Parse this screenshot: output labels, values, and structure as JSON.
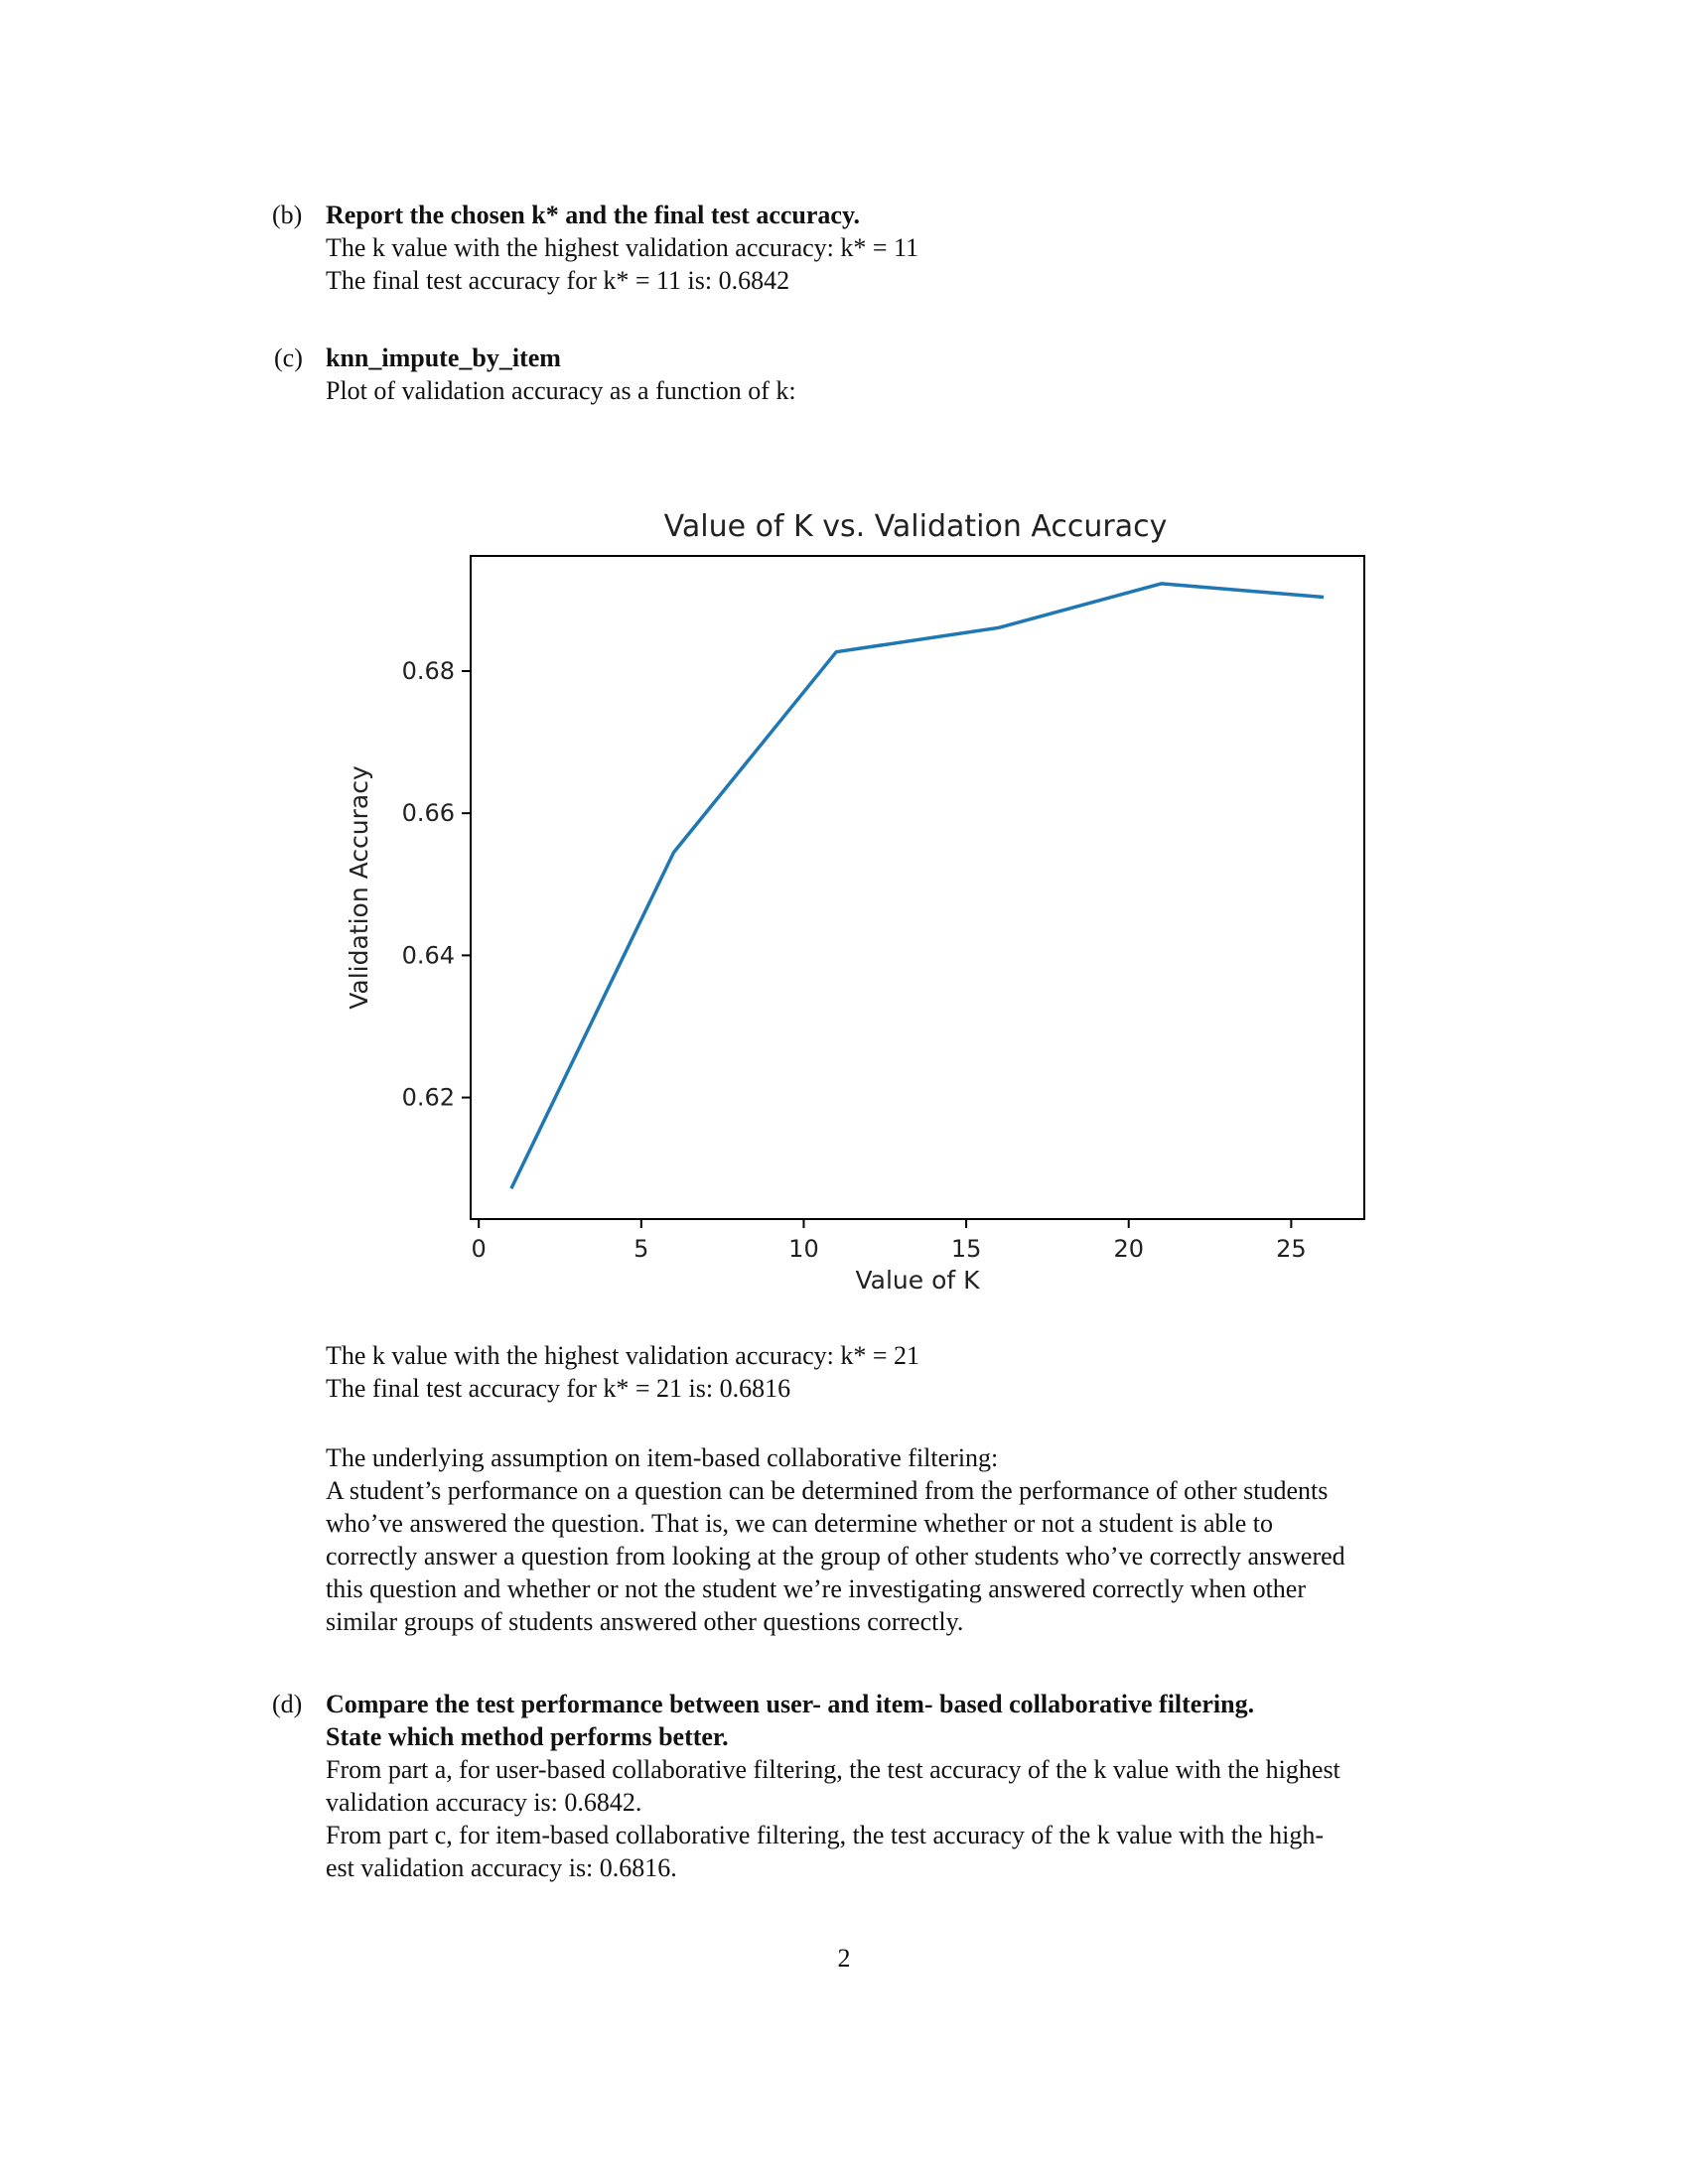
{
  "part_b": {
    "marker": "(b)",
    "heading": "Report the chosen k* and the final test accuracy.",
    "line1": "The k value with the highest validation accuracy: k* = 11",
    "line2": "The final test accuracy for k* = 11 is: 0.6842"
  },
  "part_c": {
    "marker": "(c)",
    "heading": "knn_impute_by_item",
    "intro": "Plot of validation accuracy as a function of k:",
    "result1": "The k value with the highest validation accuracy: k* = 21",
    "result2": "The final test accuracy for k* = 21 is: 0.6816",
    "assumption_title": "The underlying assumption on item-based collaborative filtering:",
    "assumption_lines": [
      "A student’s performance on a question can be determined from the performance of other students",
      "who’ve answered the question. That is, we can determine whether or not a student is able to",
      "correctly answer a question from looking at the group of other students who’ve correctly answered",
      "this question and whether or not the student we’re investigating answered correctly when other",
      "similar groups of students answered other questions correctly."
    ]
  },
  "part_d": {
    "marker": "(d)",
    "heading_line1": "Compare the test performance between user- and item- based collaborative filtering.",
    "heading_line2": "State which method performs better.",
    "body_lines": [
      "From part a, for user-based collaborative filtering, the test accuracy of the k value with the highest",
      "validation accuracy is: 0.6842.",
      "From part c, for item-based collaborative filtering, the test accuracy of the k value with the high-",
      "est validation accuracy is: 0.6816."
    ]
  },
  "page_number": "2",
  "chart_data": {
    "type": "line",
    "title": "Value of K vs. Validation Accuracy",
    "xlabel": "Value of K",
    "ylabel": "Validation Accuracy",
    "x": [
      1,
      6,
      11,
      16,
      21,
      26
    ],
    "series": [
      {
        "values": [
          0.6072,
          0.6545,
          0.6827,
          0.6861,
          0.6923,
          0.6904
        ]
      }
    ],
    "xlim": [
      -0.25,
      27.25
    ],
    "ylim": [
      0.6029,
      0.6962
    ],
    "xticks": [
      0,
      5,
      10,
      15,
      20,
      25
    ],
    "yticks": [
      0.62,
      0.64,
      0.66,
      0.68
    ],
    "ytick_labels": [
      "0.62",
      "0.64",
      "0.66",
      "0.68"
    ],
    "line_color": "#1f77b4",
    "grid": false
  }
}
